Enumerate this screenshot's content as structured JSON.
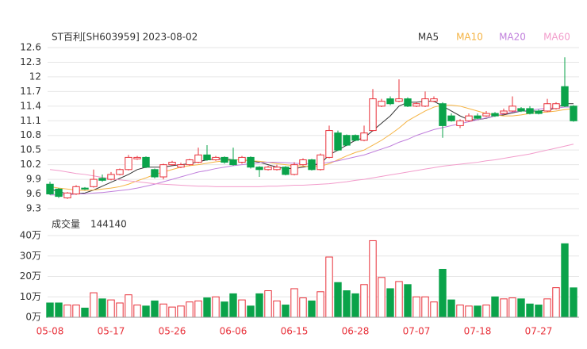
{
  "chart_data": [
    {
      "type": "candlestick",
      "title": "ST百利[SH603959] 2023-08-02",
      "up_color": "#e8313a",
      "down_color": "#0aa34a",
      "categories": [
        "05-08",
        null,
        null,
        null,
        null,
        null,
        null,
        "05-17",
        null,
        null,
        null,
        null,
        null,
        null,
        "05-26",
        null,
        null,
        null,
        null,
        null,
        null,
        "06-06",
        null,
        null,
        null,
        null,
        null,
        null,
        "06-15",
        null,
        null,
        null,
        null,
        null,
        null,
        "06-28",
        null,
        null,
        null,
        null,
        null,
        null,
        "07-07",
        null,
        null,
        null,
        null,
        null,
        null,
        "07-18",
        null,
        null,
        null,
        null,
        null,
        null,
        "07-27",
        null,
        null,
        null,
        null
      ],
      "open": [
        9.8,
        9.7,
        9.52,
        9.6,
        9.72,
        9.75,
        9.92,
        9.9,
        10.0,
        10.1,
        10.32,
        10.35,
        10.1,
        9.95,
        10.2,
        10.15,
        10.2,
        10.25,
        10.4,
        10.3,
        10.35,
        10.3,
        10.25,
        10.35,
        10.15,
        10.1,
        10.1,
        10.15,
        10.0,
        10.2,
        10.3,
        10.1,
        10.35,
        10.85,
        10.8,
        10.8,
        10.7,
        10.9,
        11.4,
        11.55,
        11.5,
        11.55,
        11.4,
        11.4,
        11.5,
        11.45,
        11.2,
        11.0,
        11.1,
        11.2,
        11.2,
        11.25,
        11.25,
        11.3,
        11.35,
        11.35,
        11.3,
        11.3,
        11.35,
        11.8,
        11.4
      ],
      "high": [
        9.85,
        9.72,
        9.64,
        9.78,
        9.74,
        10.1,
        10.0,
        10.05,
        10.12,
        10.4,
        10.38,
        10.37,
        10.12,
        10.22,
        10.28,
        10.24,
        10.32,
        10.55,
        10.6,
        10.38,
        10.37,
        10.55,
        10.38,
        10.37,
        10.17,
        10.18,
        10.2,
        10.17,
        10.25,
        10.33,
        10.32,
        10.43,
        11.0,
        10.9,
        10.82,
        10.82,
        11.0,
        11.75,
        11.55,
        11.6,
        11.95,
        11.58,
        11.48,
        11.7,
        11.6,
        11.48,
        11.25,
        11.13,
        11.25,
        11.25,
        11.3,
        11.28,
        11.35,
        11.6,
        11.38,
        11.4,
        11.33,
        11.55,
        11.48,
        12.4,
        11.42
      ],
      "low": [
        9.58,
        9.52,
        9.5,
        9.58,
        9.68,
        9.73,
        9.85,
        9.88,
        9.98,
        10.08,
        10.3,
        10.13,
        9.92,
        9.9,
        10.18,
        10.13,
        10.18,
        10.23,
        10.28,
        10.28,
        10.22,
        10.18,
        10.22,
        10.12,
        9.95,
        10.08,
        10.08,
        9.98,
        9.98,
        10.18,
        10.08,
        10.08,
        10.33,
        10.48,
        10.58,
        10.68,
        10.68,
        10.88,
        11.38,
        11.42,
        11.48,
        11.38,
        11.38,
        11.38,
        11.48,
        10.75,
        11.08,
        10.95,
        11.08,
        11.13,
        11.18,
        11.18,
        11.23,
        11.28,
        11.28,
        11.23,
        11.23,
        11.28,
        11.33,
        11.38,
        11.08
      ],
      "close": [
        9.6,
        9.55,
        9.62,
        9.75,
        9.7,
        9.9,
        9.88,
        10.0,
        10.1,
        10.35,
        10.35,
        10.15,
        9.95,
        10.2,
        10.25,
        10.2,
        10.3,
        10.4,
        10.3,
        10.35,
        10.25,
        10.2,
        10.35,
        10.15,
        10.1,
        10.15,
        10.15,
        10.0,
        10.2,
        10.3,
        10.1,
        10.4,
        10.9,
        10.5,
        10.6,
        10.7,
        10.85,
        11.55,
        11.5,
        11.45,
        11.55,
        11.4,
        11.45,
        11.55,
        11.55,
        11.0,
        11.1,
        11.1,
        11.2,
        11.15,
        11.25,
        11.2,
        11.3,
        11.4,
        11.3,
        11.25,
        11.25,
        11.45,
        11.45,
        11.4,
        11.1
      ],
      "series": [
        {
          "name": "MA5",
          "color": "#333333",
          "values": [
            9.7,
            9.65,
            9.6,
            9.6,
            9.62,
            9.68,
            9.76,
            9.84,
            9.92,
            10.0,
            10.1,
            10.15,
            10.15,
            10.15,
            10.18,
            10.2,
            10.22,
            10.26,
            10.3,
            10.32,
            10.32,
            10.3,
            10.3,
            10.28,
            10.25,
            10.2,
            10.15,
            10.12,
            10.12,
            10.15,
            10.18,
            10.22,
            10.4,
            10.5,
            10.6,
            10.7,
            10.75,
            10.9,
            11.05,
            11.2,
            11.4,
            11.48,
            11.48,
            11.5,
            11.5,
            11.4,
            11.3,
            11.2,
            11.12,
            11.12,
            11.15,
            11.2,
            11.22,
            11.26,
            11.3,
            11.3,
            11.3,
            11.32,
            11.36,
            11.45,
            11.45
          ]
        },
        {
          "name": "MA10",
          "color": "#f5b342",
          "values": [
            9.75,
            9.72,
            9.7,
            9.68,
            9.67,
            9.68,
            9.7,
            9.72,
            9.75,
            9.8,
            9.87,
            9.93,
            10.0,
            10.05,
            10.1,
            10.15,
            10.18,
            10.2,
            10.23,
            10.26,
            10.28,
            10.3,
            10.3,
            10.28,
            10.27,
            10.25,
            10.22,
            10.2,
            10.18,
            10.17,
            10.16,
            10.17,
            10.22,
            10.3,
            10.38,
            10.45,
            10.5,
            10.6,
            10.7,
            10.82,
            10.95,
            11.1,
            11.2,
            11.3,
            11.38,
            11.42,
            11.42,
            11.4,
            11.35,
            11.3,
            11.25,
            11.22,
            11.2,
            11.2,
            11.22,
            11.25,
            11.27,
            11.28,
            11.3,
            11.33,
            11.35
          ]
        },
        {
          "name": "MA20",
          "color": "#c07fdc",
          "values": [
            9.58,
            9.58,
            9.58,
            9.6,
            9.6,
            9.62,
            9.63,
            9.65,
            9.67,
            9.69,
            9.72,
            9.76,
            9.8,
            9.85,
            9.9,
            9.95,
            10.0,
            10.05,
            10.08,
            10.12,
            10.15,
            10.18,
            10.2,
            10.22,
            10.24,
            10.25,
            10.25,
            10.24,
            10.23,
            10.22,
            10.22,
            10.22,
            10.25,
            10.28,
            10.32,
            10.36,
            10.4,
            10.46,
            10.52,
            10.58,
            10.66,
            10.72,
            10.8,
            10.86,
            10.92,
            10.96,
            11.0,
            11.04,
            11.08,
            11.12,
            11.16,
            11.2,
            11.24,
            11.28,
            11.3,
            11.32,
            11.34,
            11.36,
            11.36,
            11.38,
            11.38
          ]
        },
        {
          "name": "MA60",
          "color": "#f29ccb",
          "values": [
            10.1,
            10.08,
            10.05,
            10.02,
            10.0,
            9.97,
            9.94,
            9.91,
            9.89,
            9.87,
            9.85,
            9.83,
            9.81,
            9.8,
            9.79,
            9.78,
            9.77,
            9.76,
            9.76,
            9.75,
            9.75,
            9.75,
            9.75,
            9.75,
            9.75,
            9.76,
            9.76,
            9.77,
            9.78,
            9.78,
            9.79,
            9.8,
            9.81,
            9.83,
            9.85,
            9.88,
            9.9,
            9.93,
            9.96,
            9.99,
            10.02,
            10.05,
            10.08,
            10.11,
            10.14,
            10.17,
            10.19,
            10.21,
            10.23,
            10.25,
            10.28,
            10.3,
            10.33,
            10.36,
            10.39,
            10.42,
            10.46,
            10.5,
            10.54,
            10.58,
            10.62
          ]
        }
      ],
      "ylim": [
        9.3,
        12.6
      ],
      "yticks": [
        9.3,
        9.6,
        9.9,
        10.2,
        10.5,
        10.8,
        11.1,
        11.4,
        11.7,
        12,
        12.3,
        12.6
      ],
      "grid": true
    },
    {
      "type": "bar",
      "title": "成交量",
      "values": [
        70000,
        70000,
        60000,
        60000,
        45000,
        120000,
        90000,
        85000,
        70000,
        110000,
        60000,
        55000,
        80000,
        65000,
        50000,
        55000,
        75000,
        80000,
        95000,
        100000,
        75000,
        115000,
        85000,
        55000,
        115000,
        130000,
        80000,
        60000,
        140000,
        95000,
        80000,
        125000,
        295000,
        170000,
        130000,
        115000,
        160000,
        375000,
        195000,
        140000,
        175000,
        160000,
        100000,
        100000,
        75000,
        235000,
        85000,
        60000,
        55000,
        55000,
        60000,
        100000,
        90000,
        95000,
        90000,
        65000,
        60000,
        90000,
        145000,
        360000,
        144140
      ],
      "ylim": [
        0,
        400000
      ],
      "yticks": [
        {
          "value": 0,
          "label": "0万"
        },
        {
          "value": 100000,
          "label": "10万"
        },
        {
          "value": 200000,
          "label": "20万"
        },
        {
          "value": 300000,
          "label": "30万"
        },
        {
          "value": 400000,
          "label": "40万"
        }
      ],
      "grid": true
    }
  ]
}
